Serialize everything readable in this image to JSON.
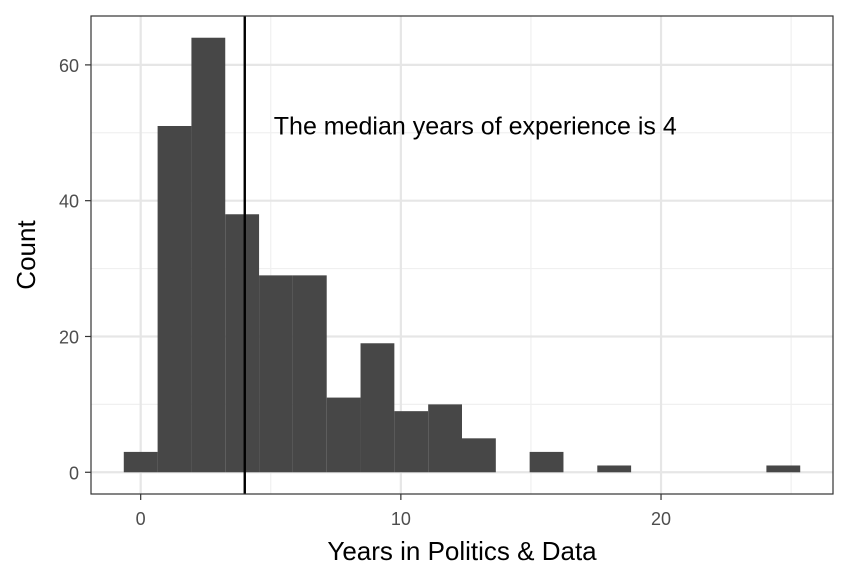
{
  "chart_data": {
    "type": "histogram",
    "xlabel": "Years in Politics & Data",
    "ylabel": "Count",
    "bin_width": 1.3,
    "bins": [
      {
        "x0": -0.65,
        "x1": 0.65,
        "count": 3
      },
      {
        "x0": 0.65,
        "x1": 1.95,
        "count": 51
      },
      {
        "x0": 1.95,
        "x1": 3.25,
        "count": 64
      },
      {
        "x0": 3.25,
        "x1": 4.55,
        "count": 38
      },
      {
        "x0": 4.55,
        "x1": 5.85,
        "count": 29
      },
      {
        "x0": 5.85,
        "x1": 7.15,
        "count": 29
      },
      {
        "x0": 7.15,
        "x1": 8.45,
        "count": 11
      },
      {
        "x0": 8.45,
        "x1": 9.75,
        "count": 19
      },
      {
        "x0": 9.75,
        "x1": 11.05,
        "count": 9
      },
      {
        "x0": 11.05,
        "x1": 12.35,
        "count": 10
      },
      {
        "x0": 12.35,
        "x1": 13.65,
        "count": 5
      },
      {
        "x0": 13.65,
        "x1": 14.95,
        "count": 0
      },
      {
        "x0": 14.95,
        "x1": 16.25,
        "count": 3
      },
      {
        "x0": 16.25,
        "x1": 17.55,
        "count": 0
      },
      {
        "x0": 17.55,
        "x1": 18.85,
        "count": 1
      },
      {
        "x0": 18.85,
        "x1": 20.15,
        "count": 0
      },
      {
        "x0": 20.15,
        "x1": 21.45,
        "count": 0
      },
      {
        "x0": 21.45,
        "x1": 22.75,
        "count": 0
      },
      {
        "x0": 22.75,
        "x1": 24.05,
        "count": 0
      },
      {
        "x0": 24.05,
        "x1": 25.35,
        "count": 1
      }
    ],
    "xlim": [
      -1.91,
      26.61
    ],
    "ylim": [
      -3.2,
      67.2
    ],
    "x_ticks": [
      0,
      10,
      20
    ],
    "x_minor_ticks": [
      5,
      15,
      25
    ],
    "y_ticks": [
      0,
      20,
      40,
      60
    ],
    "y_minor_ticks": [
      10,
      30,
      50
    ],
    "vline": {
      "x": 4
    },
    "annotation": {
      "text": "The median years of experience is 4",
      "x": 5,
      "y": 49
    },
    "bar_color": "#474747",
    "grid": true,
    "theme": "bw"
  }
}
